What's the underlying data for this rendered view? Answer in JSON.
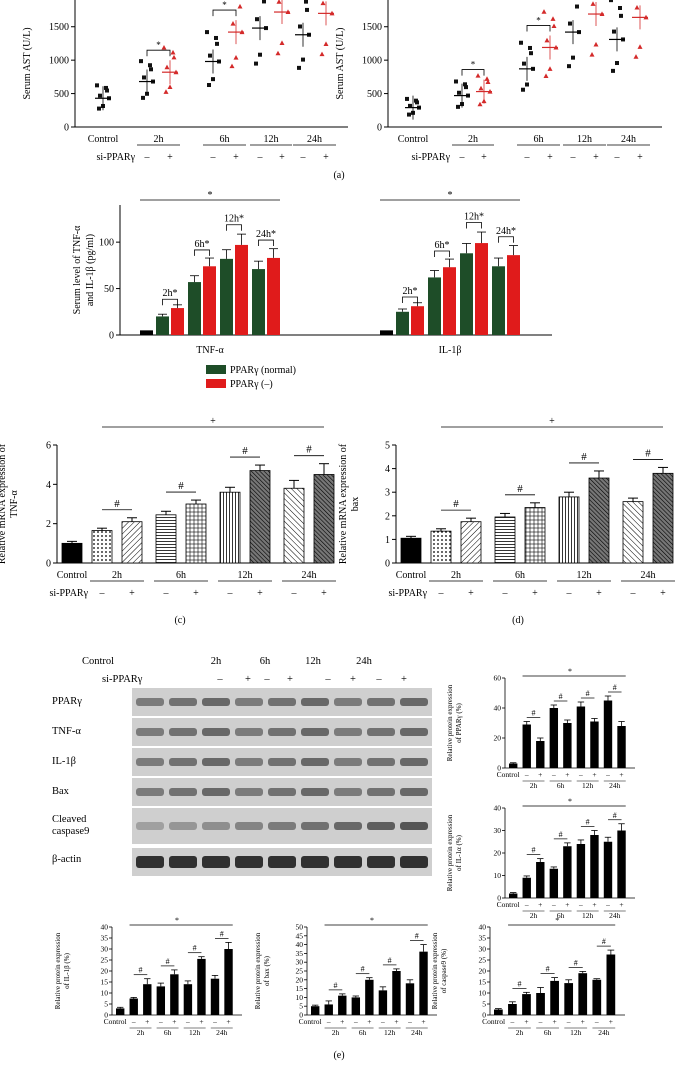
{
  "groups": [
    "Control",
    "2h",
    "6h",
    "12h",
    "24h"
  ],
  "si_row": [
    "–",
    "+",
    "–",
    "+",
    "–",
    "+",
    "–",
    "+"
  ],
  "panel_a": {
    "label": "(a)",
    "row_control": "Control",
    "row_si": "si-PPARγ",
    "left": {
      "ylabel": "Serum AST (U/L)",
      "ticks": [
        "0",
        "500",
        "1000",
        "1500"
      ],
      "ylim": [
        0,
        1900
      ]
    },
    "right": {
      "ylabel": "Serum AST (U/L)",
      "ticks": [
        "0",
        "500",
        "1000",
        "1500"
      ],
      "ylim": [
        0,
        1900
      ]
    }
  },
  "panel_b": {
    "label": "(b)",
    "ylabel": "Serum level of TNF-α and IL-1β (pg/ml)",
    "ticks": [
      "0",
      "50",
      "100"
    ],
    "groups": [
      "TNF-α",
      "IL-1β"
    ],
    "legend": [
      "PPARγ (normal)",
      "PPARγ (–)"
    ],
    "sig_labels": [
      "2h*",
      "6h*",
      "12h*",
      "24h*"
    ],
    "star": "*"
  },
  "panel_c": {
    "label": "(c)",
    "ylabel": "Relative mRNA expression of TNF-α",
    "ticks": [
      "0",
      "2",
      "4",
      "6"
    ],
    "hash": "#",
    "plus": "+",
    "row_control": "Control",
    "row_si": "si-PPARγ"
  },
  "panel_d": {
    "label": "(d)",
    "ylabel": "Relative mRNA expression of bax",
    "ticks": [
      "0",
      "1",
      "2",
      "3",
      "4",
      "5"
    ],
    "hash": "#",
    "plus": "+",
    "row_control": "Control",
    "row_si": "si-PPARγ"
  },
  "panel_e": {
    "label": "(e)",
    "header_control": "Control",
    "header_si": "si-PPARγ",
    "blot_labels": [
      "PPARγ",
      "TNF-α",
      "IL-1β",
      "Bax",
      "Cleaved caspase9",
      "β-actin"
    ],
    "charts": {
      "ppar": {
        "ylabel": "Relative protein expression of PPARγ (%)",
        "ticks": [
          "0",
          "20",
          "40",
          "60"
        ]
      },
      "il1a": {
        "ylabel": "Relative protein expression of IL-1α (%)",
        "ticks": [
          "0",
          "10",
          "20",
          "30",
          "40"
        ]
      },
      "il1b": {
        "ylabel": "Relative protein expression of IL-1β (%)",
        "ticks": [
          "0",
          "5",
          "10",
          "15",
          "20",
          "25",
          "30",
          "35",
          "40"
        ]
      },
      "bax": {
        "ylabel": "Relative protein expression of bax (%)",
        "ticks": [
          "0",
          "5",
          "10",
          "15",
          "20",
          "25",
          "30",
          "35",
          "40",
          "45",
          "50"
        ]
      },
      "casp": {
        "ylabel": "Relative protein expression of caspase9 (%)",
        "ticks": [
          "0",
          "5",
          "10",
          "15",
          "20",
          "25",
          "30",
          "35",
          "40"
        ]
      }
    },
    "xrow": [
      "Control",
      "–",
      "+",
      "–",
      "+",
      "–",
      "+",
      "–",
      "+"
    ],
    "xgroups": [
      "2h",
      "6h",
      "12h",
      "24h"
    ]
  },
  "chart_data": [
    {
      "type": "scatter",
      "panel": "a-left",
      "ylabel": "Serum AST (U/L)",
      "ylim": [
        0,
        1900
      ],
      "categories": [
        "Control",
        "2h –",
        "2h +",
        "6h –",
        "6h +",
        "12h –",
        "12h +",
        "24h –",
        "24h +"
      ],
      "values": [
        430,
        680,
        820,
        980,
        1420,
        1480,
        1720,
        1380,
        1700
      ]
    },
    {
      "type": "scatter",
      "panel": "a-right",
      "ylabel": "Serum AST (U/L)",
      "ylim": [
        0,
        1900
      ],
      "categories": [
        "Control",
        "2h –",
        "2h +",
        "6h –",
        "6h +",
        "12h –",
        "12h +",
        "24h –",
        "24h +"
      ],
      "values": [
        290,
        470,
        530,
        870,
        1190,
        1420,
        1690,
        1310,
        1640
      ]
    },
    {
      "type": "bar",
      "panel": "b",
      "ylabel": "Serum level of TNF-α and IL-1β (pg/ml)",
      "ylim": [
        0,
        140
      ],
      "categories": [
        "TNF-α",
        "IL-1β"
      ],
      "series": [
        {
          "name": "PPARγ (normal)",
          "values": [
            [
              20,
              57,
              82,
              71
            ],
            [
              25,
              62,
              88,
              74
            ]
          ]
        },
        {
          "name": "PPARγ (–)",
          "values": [
            [
              29,
              74,
              97,
              83
            ],
            [
              31,
              73,
              99,
              86
            ]
          ]
        }
      ],
      "control": [
        5,
        5
      ]
    },
    {
      "type": "bar",
      "panel": "c",
      "ylabel": "Relative mRNA expression of TNF-α",
      "ylim": [
        0,
        6
      ],
      "categories": [
        "Control",
        "2h –",
        "2h +",
        "6h –",
        "6h +",
        "12h –",
        "12h +",
        "24h –",
        "24h +"
      ],
      "values": [
        1.0,
        1.65,
        2.1,
        2.45,
        3.0,
        3.6,
        4.7,
        3.8,
        4.5
      ],
      "errors": [
        0.1,
        0.12,
        0.2,
        0.18,
        0.2,
        0.25,
        0.28,
        0.4,
        0.55
      ]
    },
    {
      "type": "bar",
      "panel": "d",
      "ylabel": "Relative mRNA expression of bax",
      "ylim": [
        0,
        5
      ],
      "categories": [
        "Control",
        "2h –",
        "2h +",
        "6h –",
        "6h +",
        "12h –",
        "12h +",
        "24h –",
        "24h +"
      ],
      "values": [
        1.05,
        1.35,
        1.75,
        1.95,
        2.35,
        2.8,
        3.6,
        2.6,
        3.8
      ],
      "errors": [
        0.08,
        0.1,
        0.15,
        0.15,
        0.2,
        0.2,
        0.3,
        0.15,
        0.25
      ]
    },
    {
      "type": "bar",
      "panel": "e-ppar",
      "ylabel": "Relative protein expression of PPARγ (%)",
      "ylim": [
        0,
        60
      ],
      "categories": [
        "Control",
        "2h –",
        "2h +",
        "6h –",
        "6h +",
        "12h –",
        "12h +",
        "24h –",
        "24h +"
      ],
      "values": [
        3,
        29,
        18,
        40,
        30,
        41,
        31,
        45,
        28
      ],
      "errors": [
        0.5,
        2,
        2,
        2,
        2,
        3,
        2,
        3,
        3
      ]
    },
    {
      "type": "bar",
      "panel": "e-il1a",
      "ylabel": "Relative protein expression of IL-1α (%)",
      "ylim": [
        0,
        40
      ],
      "categories": [
        "Control",
        "2h –",
        "2h +",
        "6h –",
        "6h +",
        "12h –",
        "12h +",
        "24h –",
        "24h +"
      ],
      "values": [
        2,
        9,
        16,
        13,
        23,
        24,
        28,
        25,
        30
      ],
      "errors": [
        0.4,
        0.8,
        1.5,
        0.8,
        1.5,
        1.8,
        2,
        2,
        3
      ]
    },
    {
      "type": "bar",
      "panel": "e-il1b",
      "ylabel": "Relative protein expression of IL-1β (%)",
      "ylim": [
        0,
        40
      ],
      "categories": [
        "Control",
        "2h –",
        "2h +",
        "6h –",
        "6h +",
        "12h –",
        "12h +",
        "24h –",
        "24h +"
      ],
      "values": [
        3,
        7.5,
        14,
        13,
        18.5,
        14,
        25.5,
        16.5,
        30
      ],
      "errors": [
        0.5,
        0.5,
        2.5,
        1.5,
        2,
        1.5,
        1,
        1.5,
        3
      ]
    },
    {
      "type": "bar",
      "panel": "e-bax",
      "ylabel": "Relative protein expression of bax (%)",
      "ylim": [
        0,
        50
      ],
      "categories": [
        "Control",
        "2h –",
        "2h +",
        "6h –",
        "6h +",
        "12h –",
        "12h +",
        "24h –",
        "24h +"
      ],
      "values": [
        5,
        6,
        11,
        10,
        20,
        14,
        25,
        18,
        36
      ],
      "errors": [
        0.6,
        2,
        1,
        0.8,
        1.2,
        2,
        1.2,
        2,
        4
      ]
    },
    {
      "type": "bar",
      "panel": "e-casp",
      "ylabel": "Relative protein expression of caspase9 (%)",
      "ylim": [
        0,
        40
      ],
      "categories": [
        "Control",
        "2h –",
        "2h +",
        "6h –",
        "6h +",
        "12h –",
        "12h +",
        "24h –",
        "24h +"
      ],
      "values": [
        2.5,
        5,
        9.5,
        10,
        15.5,
        14.5,
        19,
        16,
        27.5
      ],
      "errors": [
        0.4,
        1,
        0.8,
        2.5,
        1.5,
        1.5,
        0.8,
        0.5,
        2
      ]
    }
  ]
}
